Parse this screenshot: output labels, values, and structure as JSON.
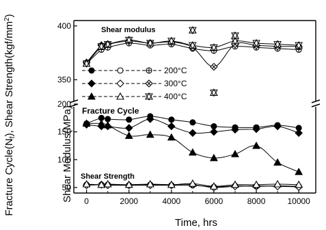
{
  "chart_data": {
    "type": "line",
    "xlabel": "Time, hrs",
    "ylabel": "Fracture Cycle(N",
    "ylabel_sub": "f",
    "ylabel_rest": "), Shear Strength(kgf/mm",
    "ylabel_sup": "2",
    "ylabel_end": ")",
    "ylabel2": "Shear Modulus(MPa)",
    "x_ticks": [
      0,
      2000,
      4000,
      6000,
      8000,
      10000
    ],
    "xlim": [
      -600,
      10800
    ],
    "y_upper_ticks": [
      350,
      400
    ],
    "y_upper_range": [
      330,
      405
    ],
    "y_lower_ticks": [
      50,
      100,
      150,
      200
    ],
    "y_lower_range": [
      40,
      200
    ],
    "annotations": {
      "shear_modulus": "Shear modulus",
      "fracture_cycle": "Fracture Cycle",
      "shear_strength": "Shear Strength"
    },
    "legend": [
      {
        "label": "200°C",
        "markers": [
          "filled-circle",
          "open-circle",
          "crossed-circle"
        ]
      },
      {
        "label": "300°C",
        "markers": [
          "filled-diamond",
          "open-diamond",
          "crossed-diamond"
        ]
      },
      {
        "label": "400°C",
        "markers": [
          "filled-triangle",
          "open-triangle",
          "crossed-triangle"
        ]
      }
    ],
    "series": [
      {
        "group": "fracture",
        "temp": "200°C",
        "marker": "filled-circle",
        "x": [
          0,
          700,
          1000,
          2000,
          3000,
          4000,
          5000,
          6000,
          7000,
          8000,
          9000,
          10000
        ],
        "y": [
          165,
          175,
          173,
          172,
          178,
          172,
          167,
          160,
          158,
          158,
          162,
          157
        ]
      },
      {
        "group": "fracture",
        "temp": "300°C",
        "marker": "filled-diamond",
        "x": [
          0,
          700,
          1000,
          2000,
          3000,
          4000,
          5000,
          6000,
          7000,
          8000,
          9000,
          10000
        ],
        "y": [
          163,
          160,
          160,
          157,
          173,
          160,
          148,
          150,
          154,
          155,
          160,
          148
        ]
      },
      {
        "group": "fracture",
        "temp": "400°C",
        "marker": "filled-triangle",
        "x": [
          0,
          700,
          1000,
          2000,
          3000,
          4000,
          5000,
          6000,
          7000,
          8000,
          9000,
          10000
        ],
        "y": [
          165,
          165,
          162,
          143,
          145,
          140,
          113,
          103,
          110,
          125,
          95,
          78
        ]
      },
      {
        "group": "strength",
        "temp": "200°C",
        "marker": "open-circle",
        "x": [
          0,
          700,
          1000,
          2000,
          3000,
          4000,
          5000,
          6000,
          7000,
          8000,
          9000,
          10000
        ],
        "y": [
          55,
          55,
          55,
          54,
          55,
          54,
          54,
          51,
          53,
          52,
          53,
          52
        ]
      },
      {
        "group": "strength",
        "temp": "300°C",
        "marker": "open-diamond",
        "x": [
          0,
          700,
          1000,
          2000,
          3000,
          4000,
          5000,
          6000,
          7000,
          8000,
          9000,
          10000
        ],
        "y": [
          54,
          55,
          54,
          54,
          54,
          54,
          55,
          50,
          52,
          53,
          52,
          51
        ]
      },
      {
        "group": "strength",
        "temp": "400°C",
        "marker": "open-triangle",
        "x": [
          0,
          700,
          1000,
          2000,
          3000,
          4000,
          5000,
          6000,
          7000,
          8000,
          9000,
          10000
        ],
        "y": [
          56,
          55,
          56,
          55,
          56,
          55,
          57,
          52,
          55,
          55,
          56,
          55
        ]
      },
      {
        "group": "modulus",
        "temp": "200°C",
        "marker": "crossed-circle",
        "x": [
          0,
          700,
          1000,
          2000,
          3000,
          4000,
          5000,
          6000,
          7000,
          8000,
          9000,
          10000
        ],
        "y": [
          365,
          378,
          380,
          384,
          382,
          383,
          379,
          377,
          381,
          380,
          379,
          378
        ]
      },
      {
        "group": "modulus",
        "temp": "300°C",
        "marker": "crossed-diamond",
        "x": [
          0,
          700,
          1000,
          2000,
          3000,
          4000,
          5000,
          6000,
          7000,
          8000,
          9000,
          10000
        ],
        "y": [
          366,
          382,
          383,
          386,
          384,
          385,
          380,
          362,
          383,
          382,
          381,
          381
        ]
      },
      {
        "group": "modulus",
        "temp": "400°C",
        "marker": "crossed-triangle",
        "x": [
          0,
          700,
          1000,
          2000,
          3000,
          4000,
          5000,
          6000,
          7000,
          8000,
          9000,
          10000
        ],
        "y": [
          365,
          381,
          383,
          387,
          384,
          386,
          382,
          380,
          386,
          384,
          383,
          382
        ]
      }
    ],
    "outliers": [
      {
        "temp": "400°C",
        "marker": "crossed-triangle",
        "x": 5000,
        "y": 396
      },
      {
        "temp": "400°C",
        "marker": "crossed-triangle",
        "x": 6000,
        "y": 338
      },
      {
        "temp": "400°C",
        "marker": "crossed-triangle",
        "x": 7000,
        "y": 391
      }
    ]
  }
}
